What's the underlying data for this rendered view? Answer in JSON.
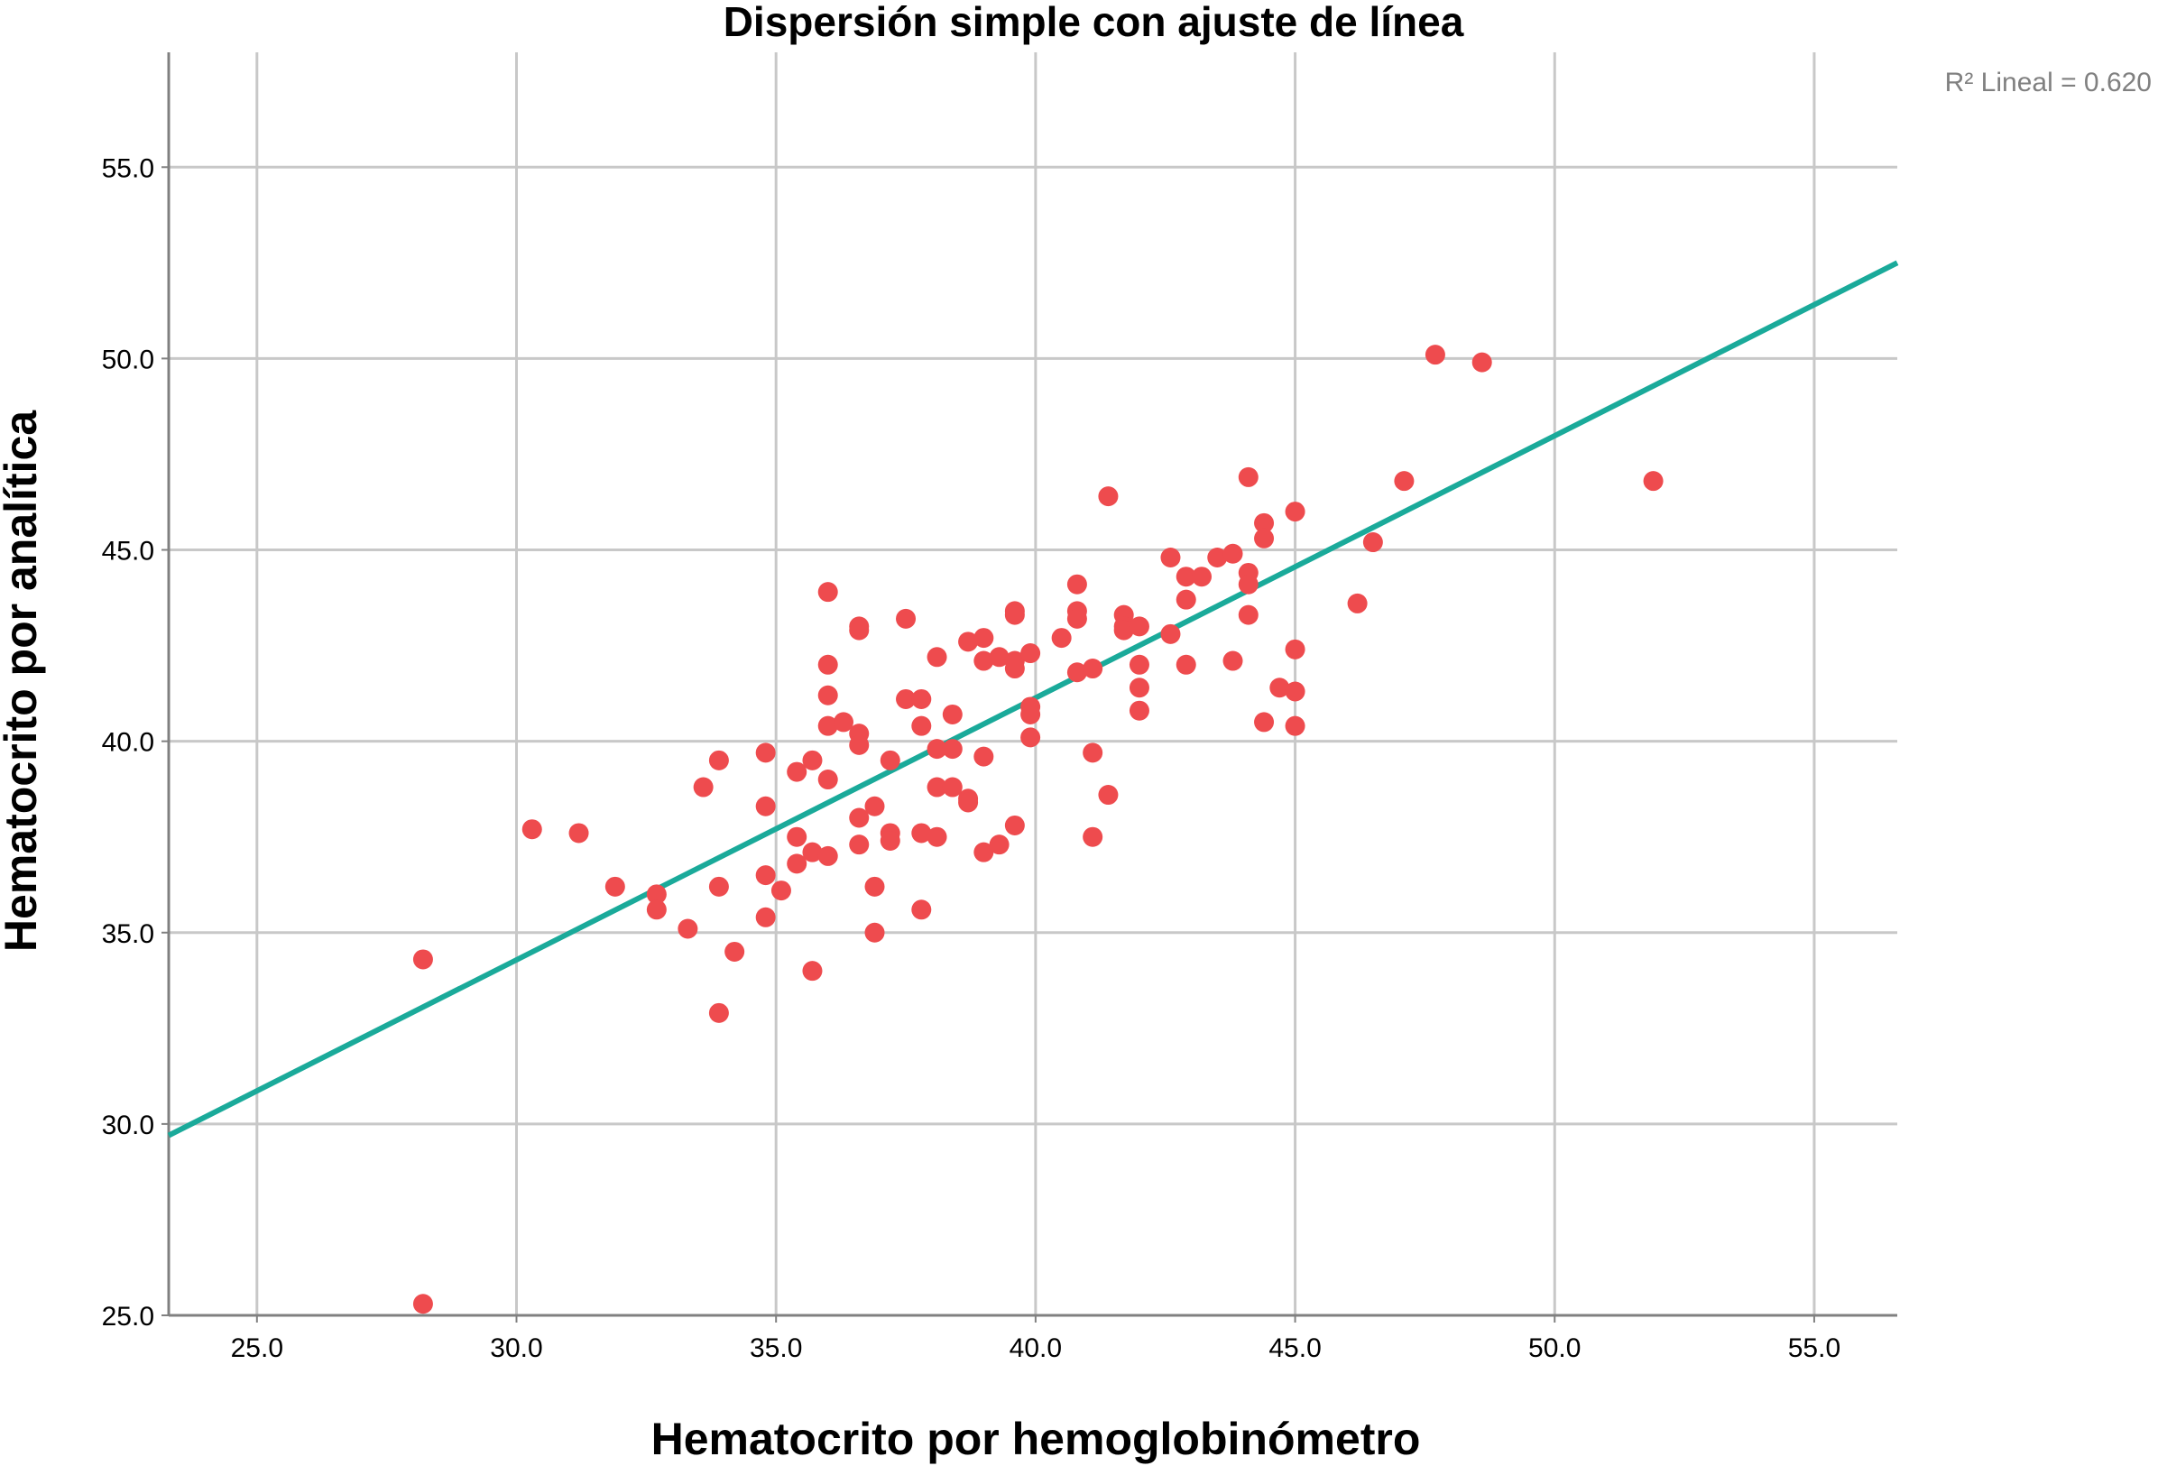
{
  "chart_data": {
    "type": "scatter",
    "title": "Dispersión simple con ajuste de línea",
    "xlabel": "Hematocrito por hemoglobinómetro",
    "ylabel": "Hematocrito por analítica",
    "xlim": [
      23.3,
      56.6
    ],
    "ylim": [
      25.0,
      58.0
    ],
    "x_ticks": [
      "25.0",
      "30.0",
      "35.0",
      "40.0",
      "45.0",
      "50.0",
      "55.0"
    ],
    "y_ticks": [
      "25.0",
      "30.0",
      "35.0",
      "40.0",
      "45.0",
      "50.0",
      "55.0"
    ],
    "grid": true,
    "annotation": "R² Lineal = 0.620",
    "fit_line": {
      "x": [
        23.3,
        56.6
      ],
      "y": [
        29.7,
        52.5
      ]
    },
    "colors": {
      "points": "#ee4b4e",
      "fit_line": "#1aaa9a",
      "grid": "#c8c8c8",
      "axis": "#808080"
    },
    "points": [
      {
        "x": 28.2,
        "y": 34.3
      },
      {
        "x": 28.2,
        "y": 25.3
      },
      {
        "x": 30.3,
        "y": 37.7
      },
      {
        "x": 31.2,
        "y": 37.6
      },
      {
        "x": 31.9,
        "y": 36.2
      },
      {
        "x": 32.7,
        "y": 36.0
      },
      {
        "x": 32.7,
        "y": 35.6
      },
      {
        "x": 33.3,
        "y": 35.1
      },
      {
        "x": 33.6,
        "y": 38.8
      },
      {
        "x": 33.9,
        "y": 39.5
      },
      {
        "x": 33.9,
        "y": 36.2
      },
      {
        "x": 33.9,
        "y": 32.9
      },
      {
        "x": 34.2,
        "y": 34.5
      },
      {
        "x": 34.8,
        "y": 39.7
      },
      {
        "x": 34.8,
        "y": 38.3
      },
      {
        "x": 34.8,
        "y": 36.5
      },
      {
        "x": 34.8,
        "y": 35.4
      },
      {
        "x": 35.1,
        "y": 36.1
      },
      {
        "x": 35.4,
        "y": 39.2
      },
      {
        "x": 35.4,
        "y": 37.5
      },
      {
        "x": 35.4,
        "y": 36.8
      },
      {
        "x": 35.7,
        "y": 39.5
      },
      {
        "x": 35.7,
        "y": 37.1
      },
      {
        "x": 35.7,
        "y": 34.0
      },
      {
        "x": 36.0,
        "y": 43.9
      },
      {
        "x": 36.0,
        "y": 42.0
      },
      {
        "x": 36.0,
        "y": 41.2
      },
      {
        "x": 36.0,
        "y": 40.4
      },
      {
        "x": 36.0,
        "y": 39.0
      },
      {
        "x": 36.0,
        "y": 37.0
      },
      {
        "x": 36.3,
        "y": 40.5
      },
      {
        "x": 36.6,
        "y": 42.9
      },
      {
        "x": 36.6,
        "y": 43.0
      },
      {
        "x": 36.6,
        "y": 40.2
      },
      {
        "x": 36.6,
        "y": 39.9
      },
      {
        "x": 36.6,
        "y": 38.0
      },
      {
        "x": 36.6,
        "y": 37.3
      },
      {
        "x": 36.9,
        "y": 38.3
      },
      {
        "x": 36.9,
        "y": 36.2
      },
      {
        "x": 36.9,
        "y": 35.0
      },
      {
        "x": 37.2,
        "y": 39.5
      },
      {
        "x": 37.2,
        "y": 37.6
      },
      {
        "x": 37.2,
        "y": 37.4
      },
      {
        "x": 37.5,
        "y": 43.2
      },
      {
        "x": 37.5,
        "y": 41.1
      },
      {
        "x": 37.8,
        "y": 41.1
      },
      {
        "x": 37.8,
        "y": 40.4
      },
      {
        "x": 37.8,
        "y": 37.6
      },
      {
        "x": 37.8,
        "y": 35.6
      },
      {
        "x": 38.1,
        "y": 42.2
      },
      {
        "x": 38.1,
        "y": 39.8
      },
      {
        "x": 38.1,
        "y": 38.8
      },
      {
        "x": 38.1,
        "y": 37.5
      },
      {
        "x": 38.4,
        "y": 40.7
      },
      {
        "x": 38.4,
        "y": 39.8
      },
      {
        "x": 38.4,
        "y": 38.8
      },
      {
        "x": 38.7,
        "y": 42.6
      },
      {
        "x": 38.7,
        "y": 38.5
      },
      {
        "x": 38.7,
        "y": 38.4
      },
      {
        "x": 39.0,
        "y": 42.7
      },
      {
        "x": 39.0,
        "y": 42.1
      },
      {
        "x": 39.0,
        "y": 39.6
      },
      {
        "x": 39.0,
        "y": 37.1
      },
      {
        "x": 39.3,
        "y": 42.2
      },
      {
        "x": 39.3,
        "y": 37.3
      },
      {
        "x": 39.6,
        "y": 43.4
      },
      {
        "x": 39.6,
        "y": 43.3
      },
      {
        "x": 39.6,
        "y": 42.1
      },
      {
        "x": 39.6,
        "y": 41.9
      },
      {
        "x": 39.6,
        "y": 37.8
      },
      {
        "x": 39.9,
        "y": 42.3
      },
      {
        "x": 39.9,
        "y": 40.9
      },
      {
        "x": 39.9,
        "y": 40.7
      },
      {
        "x": 39.9,
        "y": 40.1
      },
      {
        "x": 40.5,
        "y": 42.7
      },
      {
        "x": 40.8,
        "y": 44.1
      },
      {
        "x": 40.8,
        "y": 43.4
      },
      {
        "x": 40.8,
        "y": 43.2
      },
      {
        "x": 40.8,
        "y": 41.8
      },
      {
        "x": 41.1,
        "y": 41.9
      },
      {
        "x": 41.1,
        "y": 39.7
      },
      {
        "x": 41.1,
        "y": 37.5
      },
      {
        "x": 41.4,
        "y": 46.4
      },
      {
        "x": 41.4,
        "y": 38.6
      },
      {
        "x": 41.7,
        "y": 43.3
      },
      {
        "x": 41.7,
        "y": 43.0
      },
      {
        "x": 41.7,
        "y": 42.9
      },
      {
        "x": 42.0,
        "y": 43.0
      },
      {
        "x": 42.0,
        "y": 42.0
      },
      {
        "x": 42.0,
        "y": 41.4
      },
      {
        "x": 42.0,
        "y": 40.8
      },
      {
        "x": 42.6,
        "y": 44.8
      },
      {
        "x": 42.6,
        "y": 42.8
      },
      {
        "x": 42.9,
        "y": 44.3
      },
      {
        "x": 42.9,
        "y": 43.7
      },
      {
        "x": 42.9,
        "y": 42.0
      },
      {
        "x": 43.2,
        "y": 44.3
      },
      {
        "x": 43.5,
        "y": 44.8
      },
      {
        "x": 43.8,
        "y": 44.9
      },
      {
        "x": 43.8,
        "y": 42.1
      },
      {
        "x": 44.1,
        "y": 46.9
      },
      {
        "x": 44.1,
        "y": 44.4
      },
      {
        "x": 44.1,
        "y": 44.1
      },
      {
        "x": 44.1,
        "y": 43.3
      },
      {
        "x": 44.4,
        "y": 45.7
      },
      {
        "x": 44.4,
        "y": 45.3
      },
      {
        "x": 44.4,
        "y": 40.5
      },
      {
        "x": 44.7,
        "y": 41.4
      },
      {
        "x": 45.0,
        "y": 46.0
      },
      {
        "x": 45.0,
        "y": 42.4
      },
      {
        "x": 45.0,
        "y": 41.3
      },
      {
        "x": 45.0,
        "y": 40.4
      },
      {
        "x": 46.2,
        "y": 43.6
      },
      {
        "x": 46.5,
        "y": 45.2
      },
      {
        "x": 47.1,
        "y": 46.8
      },
      {
        "x": 47.7,
        "y": 50.1
      },
      {
        "x": 48.6,
        "y": 49.9
      },
      {
        "x": 51.9,
        "y": 46.8
      }
    ]
  }
}
